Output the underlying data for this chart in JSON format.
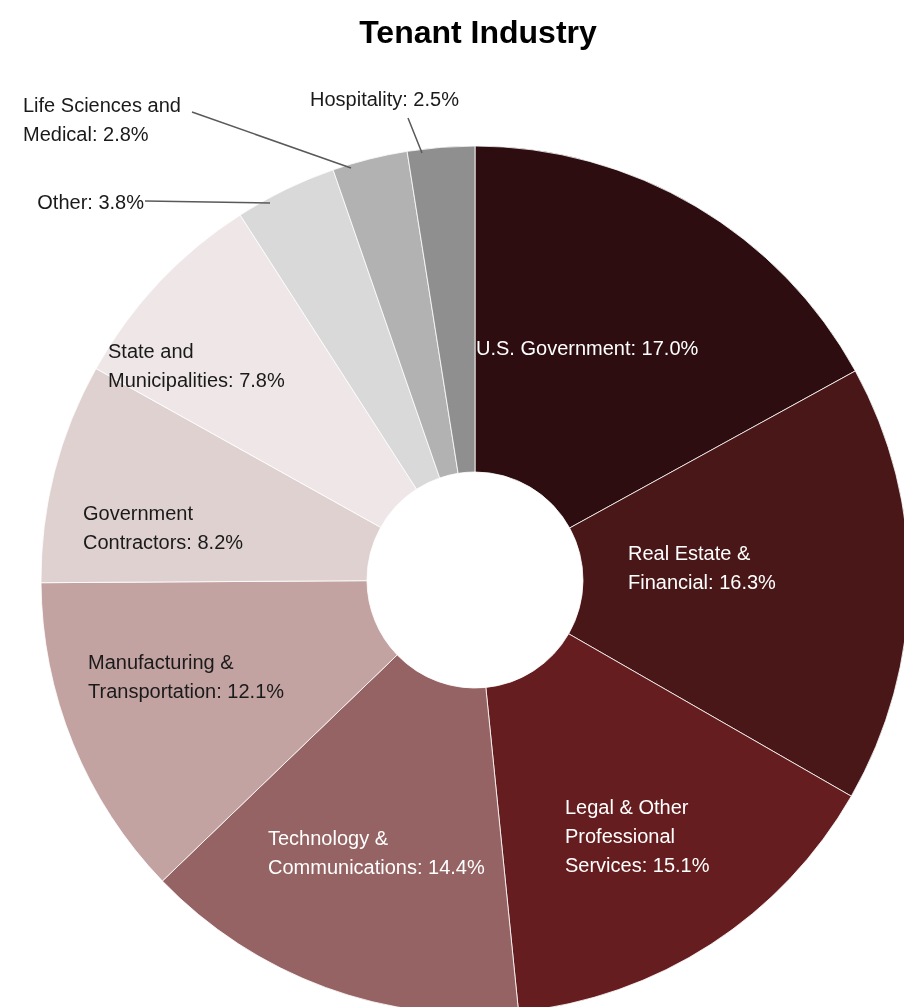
{
  "chart_data": {
    "type": "donut",
    "title": "Tenant Industry",
    "categories": [
      "U.S. Government",
      "Real Estate & Financial",
      "Legal & Other Professional Services",
      "Technology & Communications",
      "Manufacturing & Transportation",
      "Government Contractors",
      "State and Municipalities",
      "Other",
      "Life Sciences and Medical",
      "Hospitality"
    ],
    "values": [
      17.0,
      16.3,
      15.1,
      14.4,
      12.1,
      8.2,
      7.8,
      3.8,
      2.8,
      2.5
    ],
    "value_labels": [
      "17.0%",
      "16.3%",
      "15.1%",
      "14.4%",
      "12.1%",
      "8.2%",
      "7.8%",
      "3.8%",
      "2.8%",
      "2.5%"
    ],
    "colors": [
      "#2d0d0f",
      "#4a1718",
      "#661d1f",
      "#956363",
      "#c3a2a2",
      "#e0d1d1",
      "#efe7e7",
      "#d9d9d9",
      "#b2b2b2",
      "#8f8f8f"
    ]
  }
}
